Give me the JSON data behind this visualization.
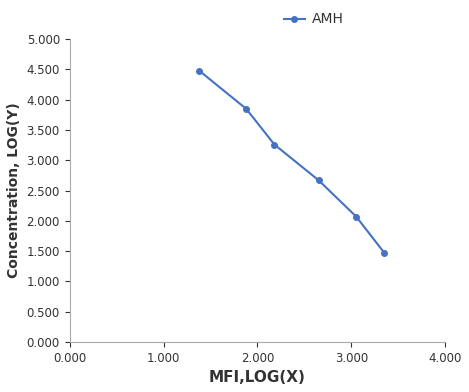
{
  "x": [
    1.38,
    1.88,
    2.18,
    2.65,
    3.05,
    3.35
  ],
  "y": [
    4.48,
    3.85,
    3.26,
    2.67,
    2.07,
    1.47
  ],
  "line_color": "#4472C4",
  "marker": "o",
  "marker_size": 4,
  "line_width": 1.5,
  "legend_label": "AMH",
  "xlabel": "MFI,LOG(X)",
  "ylabel": "Concentration, LOG(Y)",
  "xlim": [
    0.0,
    4.0
  ],
  "ylim": [
    0.0,
    5.0
  ],
  "xticks": [
    0.0,
    1.0,
    2.0,
    3.0,
    4.0
  ],
  "yticks": [
    0.0,
    0.5,
    1.0,
    1.5,
    2.0,
    2.5,
    3.0,
    3.5,
    4.0,
    4.5,
    5.0
  ],
  "xlabel_fontsize": 11,
  "ylabel_fontsize": 10,
  "legend_fontsize": 10,
  "tick_fontsize": 8.5,
  "background_color": "#ffffff",
  "spine_color": "#aaaaaa",
  "text_color": "#333333"
}
